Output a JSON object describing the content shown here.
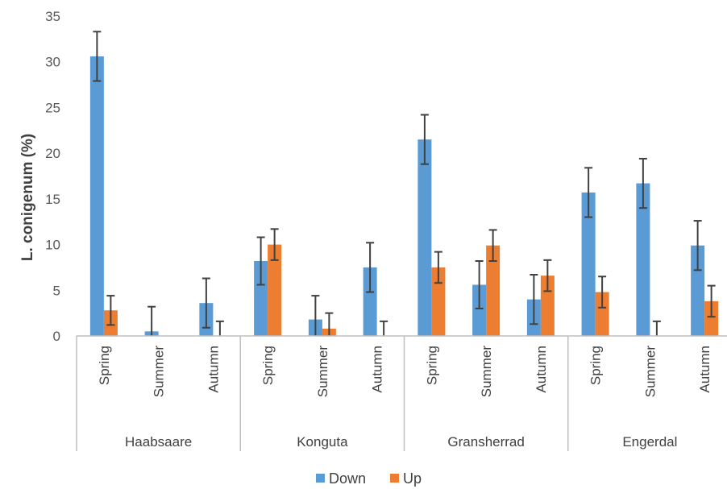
{
  "chart_data": {
    "type": "bar",
    "ylabel": "L. conigenum (%)",
    "ylim": [
      0,
      35
    ],
    "yticks": [
      0,
      5,
      10,
      15,
      20,
      25,
      30,
      35
    ],
    "grid": false,
    "legend_position": "bottom",
    "groups": [
      {
        "name": "Haabsaare",
        "categories": [
          "Spring",
          "Summer",
          "Autumn"
        ]
      },
      {
        "name": "Konguta",
        "categories": [
          "Spring",
          "Summer",
          "Autumn"
        ]
      },
      {
        "name": "Gransherrad",
        "categories": [
          "Spring",
          "Summer",
          "Autumn"
        ]
      },
      {
        "name": "Engerdal",
        "categories": [
          "Spring",
          "Summer",
          "Autumn"
        ]
      }
    ],
    "series": [
      {
        "name": "Down",
        "color": "#5B9BD5",
        "values": [
          30.6,
          0.5,
          3.6,
          8.2,
          1.8,
          7.5,
          21.5,
          5.6,
          4.0,
          15.7,
          16.7,
          9.9
        ],
        "errors": [
          2.7,
          2.7,
          2.7,
          2.6,
          2.6,
          2.7,
          2.7,
          2.6,
          2.7,
          2.7,
          2.7,
          2.7
        ]
      },
      {
        "name": "Up",
        "color": "#ED7D31",
        "values": [
          2.8,
          0,
          0,
          10.0,
          0.8,
          0,
          7.5,
          9.9,
          6.6,
          4.8,
          0,
          3.8
        ],
        "errors": [
          1.6,
          0,
          1.6,
          1.7,
          1.7,
          1.6,
          1.7,
          1.7,
          1.7,
          1.7,
          1.6,
          1.7
        ]
      }
    ]
  }
}
